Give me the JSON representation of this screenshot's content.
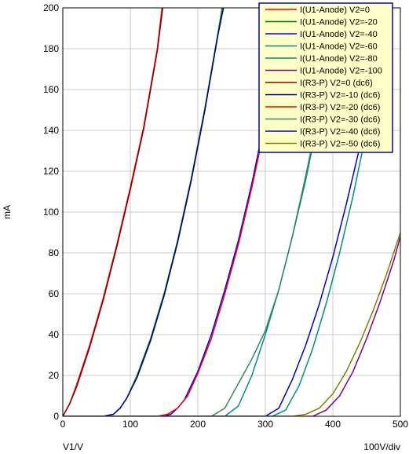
{
  "chart_data": {
    "type": "line",
    "title": "",
    "xlabel": "V1/V",
    "ylabel": "mA",
    "x_scale_note": "100V/div",
    "xlim": [
      0,
      500
    ],
    "ylim": [
      0,
      200
    ],
    "x_ticks": [
      "0",
      "100",
      "200",
      "300",
      "400",
      "500"
    ],
    "y_ticks": [
      "0",
      "20",
      "40",
      "60",
      "80",
      "100",
      "120",
      "140",
      "160",
      "180",
      "200"
    ],
    "grid": true,
    "legend_position": "top-right",
    "series": [
      {
        "name": "I(U1-Anode) V2=0",
        "color": "#ff0000",
        "x": [
          0,
          5,
          10,
          20,
          40,
          60,
          80,
          100,
          120,
          140,
          147
        ],
        "y": [
          0,
          3,
          6,
          15,
          35,
          58,
          84,
          112,
          142,
          180,
          200
        ]
      },
      {
        "name": "I(U1-Anode) V2=-20",
        "color": "#008000",
        "x": [
          60,
          75,
          85,
          95,
          110,
          130,
          150,
          170,
          190,
          210,
          230,
          236
        ],
        "y": [
          0,
          1,
          4,
          9,
          20,
          38,
          60,
          86,
          116,
          150,
          188,
          200
        ]
      },
      {
        "name": "I(U1-Anode) V2=-40",
        "color": "#0000ff",
        "x": [
          150,
          160,
          170,
          180,
          200,
          220,
          240,
          260,
          280,
          300,
          320,
          330
        ],
        "y": [
          0,
          1,
          4,
          8,
          22,
          40,
          62,
          86,
          114,
          146,
          182,
          200
        ]
      },
      {
        "name": "I(U1-Anode) V2=-60",
        "color": "#008b8b",
        "x": [
          240,
          260,
          280,
          300,
          320,
          340,
          360,
          380,
          400,
          420
        ],
        "y": [
          0,
          5,
          20,
          40,
          62,
          88,
          116,
          148,
          184,
          200
        ]
      },
      {
        "name": "I(U1-Anode) V2=-80",
        "color": "#008b8b",
        "x": [
          310,
          330,
          350,
          370,
          390,
          410,
          430,
          450,
          460,
          470
        ],
        "y": [
          0,
          3,
          15,
          33,
          55,
          80,
          108,
          140,
          158,
          175
        ]
      },
      {
        "name": "I(U1-Anode) V2=-100",
        "color": "#800080",
        "x": [
          350,
          370,
          390,
          410,
          430,
          450,
          470,
          490,
          500,
          507
        ],
        "y": [
          0,
          0,
          3,
          10,
          22,
          38,
          56,
          76,
          88,
          95
        ]
      },
      {
        "name": "I(R3-P) V2=0 (dc6)",
        "color": "#8b0000",
        "x": [
          0,
          5,
          10,
          20,
          40,
          60,
          80,
          100,
          120,
          140,
          148
        ],
        "y": [
          0,
          3,
          6,
          14,
          34,
          57,
          83,
          111,
          141,
          179,
          200
        ]
      },
      {
        "name": "I(R3-P) V2=-10 (dc6)",
        "color": "#00008b",
        "x": [
          60,
          75,
          85,
          95,
          110,
          130,
          150,
          170,
          190,
          210,
          230,
          238
        ],
        "y": [
          0,
          1,
          4,
          9,
          19,
          37,
          59,
          85,
          115,
          149,
          187,
          200
        ]
      },
      {
        "name": "I(R3-P) V2=-20 (dc6)",
        "color": "#ff0000",
        "x": [
          140,
          155,
          170,
          185,
          200,
          220,
          240,
          260,
          280,
          300,
          320,
          335
        ],
        "y": [
          0,
          1,
          4,
          10,
          21,
          38,
          60,
          84,
          112,
          143,
          178,
          200
        ]
      },
      {
        "name": "I(R3-P) V2=-30 (dc6)",
        "color": "#2e8b57",
        "x": [
          220,
          240,
          260,
          280,
          300,
          320,
          340,
          360,
          380,
          400,
          415
        ],
        "y": [
          0,
          4,
          16,
          28,
          42,
          62,
          88,
          118,
          150,
          186,
          200
        ]
      },
      {
        "name": "I(R3-P) V2=-40 (dc6)",
        "color": "#0000cd",
        "x": [
          300,
          320,
          340,
          360,
          380,
          400,
          420,
          440,
          460,
          470
        ],
        "y": [
          0,
          4,
          18,
          35,
          55,
          78,
          104,
          132,
          162,
          178
        ]
      },
      {
        "name": "I(R3-P) V2=-50 (dc6)",
        "color": "#808000",
        "x": [
          340,
          360,
          380,
          400,
          420,
          440,
          460,
          480,
          500,
          510
        ],
        "y": [
          0,
          1,
          4,
          11,
          22,
          36,
          52,
          70,
          90,
          98
        ]
      }
    ]
  }
}
